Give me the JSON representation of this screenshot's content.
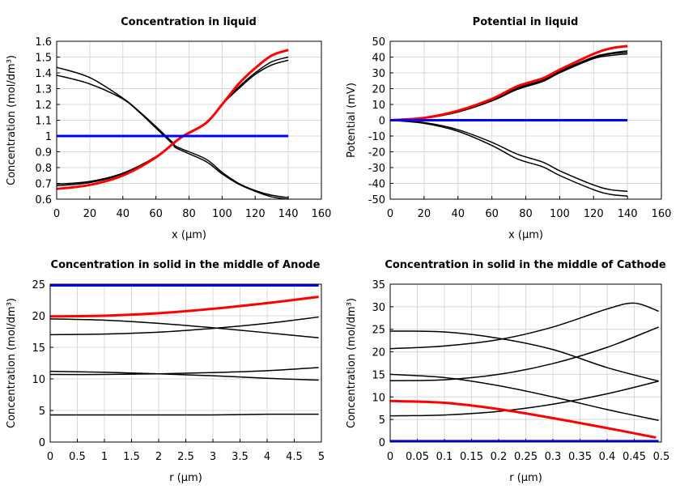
{
  "chart_data": [
    {
      "type": "line",
      "title": "Concentration in liquid",
      "xlabel": "x (µm)",
      "ylabel": "Concentration (mol/dm³)",
      "xlim": [
        0,
        160
      ],
      "ylim": [
        0.6,
        1.6
      ],
      "xticks": [
        "0",
        "20",
        "40",
        "60",
        "80",
        "100",
        "120",
        "140",
        "160"
      ],
      "yticks": [
        "0.6",
        "0.7",
        "0.8",
        "0.9",
        "1",
        "1.1",
        "1.2",
        "1.3",
        "1.4",
        "1.5",
        "1.6"
      ],
      "grid": true,
      "series": [
        {
          "color": "#000000",
          "points": [
            [
              0,
              1.435
            ],
            [
              20,
              1.37
            ],
            [
              40,
              1.24
            ],
            [
              50,
              1.155
            ],
            [
              60,
              1.06
            ],
            [
              70,
              0.96
            ],
            [
              73,
              0.93
            ],
            [
              90,
              0.855
            ],
            [
              100,
              0.77
            ],
            [
              110,
              0.7
            ],
            [
              120,
              0.655
            ],
            [
              130,
              0.625
            ],
            [
              140,
              0.61
            ]
          ]
        },
        {
          "color": "#000000",
          "points": [
            [
              0,
              1.385
            ],
            [
              20,
              1.33
            ],
            [
              40,
              1.235
            ],
            [
              50,
              1.15
            ],
            [
              60,
              1.05
            ],
            [
              70,
              0.95
            ],
            [
              73,
              0.92
            ],
            [
              90,
              0.84
            ],
            [
              100,
              0.76
            ],
            [
              110,
              0.695
            ],
            [
              120,
              0.65
            ],
            [
              130,
              0.615
            ],
            [
              140,
              0.6
            ]
          ]
        },
        {
          "color": "#000000",
          "points": [
            [
              0,
              0.695
            ],
            [
              20,
              0.712
            ],
            [
              40,
              0.765
            ],
            [
              60,
              0.87
            ],
            [
              75,
              0.99
            ],
            [
              90,
              1.08
            ],
            [
              100,
              1.2
            ],
            [
              110,
              1.31
            ],
            [
              120,
              1.4
            ],
            [
              130,
              1.47
            ],
            [
              140,
              1.5
            ]
          ]
        },
        {
          "color": "#000000",
          "points": [
            [
              0,
              0.685
            ],
            [
              20,
              0.705
            ],
            [
              40,
              0.76
            ],
            [
              60,
              0.868
            ],
            [
              75,
              0.99
            ],
            [
              90,
              1.08
            ],
            [
              100,
              1.2
            ],
            [
              110,
              1.3
            ],
            [
              120,
              1.39
            ],
            [
              130,
              1.45
            ],
            [
              140,
              1.48
            ]
          ]
        },
        {
          "color": "#ff0000",
          "points": [
            [
              0,
              0.665
            ],
            [
              20,
              0.69
            ],
            [
              40,
              0.75
            ],
            [
              60,
              0.865
            ],
            [
              75,
              0.99
            ],
            [
              90,
              1.08
            ],
            [
              100,
              1.2
            ],
            [
              110,
              1.33
            ],
            [
              120,
              1.43
            ],
            [
              130,
              1.51
            ],
            [
              140,
              1.545
            ]
          ]
        },
        {
          "color": "#0000ff",
          "points": [
            [
              0,
              1
            ],
            [
              140,
              1
            ]
          ]
        }
      ]
    },
    {
      "type": "line",
      "title": "Potential in liquid",
      "xlabel": "x (µm)",
      "ylabel": "Potential (mV)",
      "xlim": [
        0,
        160
      ],
      "ylim": [
        -50,
        50
      ],
      "xticks": [
        "0",
        "20",
        "40",
        "60",
        "80",
        "100",
        "120",
        "140",
        "160"
      ],
      "yticks": [
        "-50",
        "-40",
        "-30",
        "-20",
        "-10",
        "0",
        "10",
        "20",
        "30",
        "40",
        "50"
      ],
      "grid": true,
      "series": [
        {
          "color": "#000000",
          "points": [
            [
              0,
              0
            ],
            [
              20,
              1.4
            ],
            [
              40,
              5.6
            ],
            [
              60,
              13
            ],
            [
              75,
              20.5
            ],
            [
              90,
              25.5
            ],
            [
              100,
              31
            ],
            [
              120,
              40
            ],
            [
              130,
              42.5
            ],
            [
              140,
              44
            ]
          ]
        },
        {
          "color": "#000000",
          "points": [
            [
              0,
              0
            ],
            [
              20,
              1.3
            ],
            [
              40,
              5.4
            ],
            [
              60,
              12.6
            ],
            [
              75,
              20
            ],
            [
              90,
              25
            ],
            [
              100,
              30.5
            ],
            [
              120,
              39.5
            ],
            [
              130,
              42
            ],
            [
              140,
              43
            ]
          ]
        },
        {
          "color": "#000000",
          "points": [
            [
              0,
              0
            ],
            [
              20,
              1.2
            ],
            [
              40,
              5.2
            ],
            [
              60,
              12.2
            ],
            [
              75,
              19.5
            ],
            [
              90,
              24.5
            ],
            [
              100,
              30
            ],
            [
              120,
              39
            ],
            [
              130,
              41
            ],
            [
              140,
              42
            ]
          ]
        },
        {
          "color": "#000000",
          "points": [
            [
              0,
              0
            ],
            [
              20,
              -1.5
            ],
            [
              40,
              -6
            ],
            [
              60,
              -14
            ],
            [
              75,
              -21.5
            ],
            [
              90,
              -26.5
            ],
            [
              100,
              -32
            ],
            [
              120,
              -41
            ],
            [
              130,
              -44
            ],
            [
              140,
              -45
            ]
          ]
        },
        {
          "color": "#000000",
          "points": [
            [
              0,
              0
            ],
            [
              20,
              -2
            ],
            [
              40,
              -7
            ],
            [
              60,
              -16
            ],
            [
              75,
              -24.5
            ],
            [
              90,
              -29.5
            ],
            [
              100,
              -35
            ],
            [
              120,
              -44
            ],
            [
              130,
              -47
            ],
            [
              140,
              -48
            ]
          ]
        },
        {
          "color": "#ff0000",
          "points": [
            [
              0,
              0
            ],
            [
              20,
              1.5
            ],
            [
              40,
              6
            ],
            [
              60,
              13.5
            ],
            [
              75,
              21.5
            ],
            [
              90,
              26.5
            ],
            [
              100,
              32
            ],
            [
              120,
              42
            ],
            [
              130,
              45.5
            ],
            [
              140,
              47
            ]
          ]
        },
        {
          "color": "#0000ff",
          "points": [
            [
              0,
              0
            ],
            [
              140,
              0
            ]
          ]
        }
      ]
    },
    {
      "type": "line",
      "title": "Concentration in solid in the middle of Anode",
      "xlabel": "r (µm)",
      "ylabel": "Concentration (mol/dm³)",
      "xlim": [
        0,
        5
      ],
      "ylim": [
        0,
        25
      ],
      "xticks": [
        "0",
        "0.5",
        "1",
        "1.5",
        "2",
        "2.5",
        "3",
        "3.5",
        "4",
        "4.5",
        "5"
      ],
      "yticks": [
        "0",
        "5",
        "10",
        "15",
        "20",
        "25"
      ],
      "grid": true,
      "series": [
        {
          "color": "#000000",
          "points": [
            [
              0,
              19.5
            ],
            [
              1,
              19.3
            ],
            [
              2,
              18.8
            ],
            [
              3,
              18.1
            ],
            [
              4,
              17.3
            ],
            [
              4.95,
              16.5
            ]
          ]
        },
        {
          "color": "#000000",
          "points": [
            [
              0,
              17
            ],
            [
              1,
              17.1
            ],
            [
              2,
              17.4
            ],
            [
              3,
              18
            ],
            [
              4,
              18.8
            ],
            [
              4.95,
              19.8
            ]
          ]
        },
        {
          "color": "#000000",
          "points": [
            [
              0,
              11.2
            ],
            [
              1,
              11.05
            ],
            [
              2,
              10.8
            ],
            [
              3,
              10.5
            ],
            [
              4,
              10.1
            ],
            [
              4.95,
              9.8
            ]
          ]
        },
        {
          "color": "#000000",
          "points": [
            [
              0,
              10.7
            ],
            [
              1,
              10.7
            ],
            [
              2,
              10.8
            ],
            [
              3,
              11
            ],
            [
              4,
              11.3
            ],
            [
              4.95,
              11.8
            ]
          ]
        },
        {
          "color": "#000000",
          "points": [
            [
              0,
              4.3
            ],
            [
              1,
              4.3
            ],
            [
              2,
              4.3
            ],
            [
              3,
              4.3
            ],
            [
              4,
              4.4
            ],
            [
              4.95,
              4.4
            ]
          ]
        },
        {
          "color": "#ff0000",
          "points": [
            [
              0,
              19.9
            ],
            [
              1,
              20
            ],
            [
              2,
              20.4
            ],
            [
              3,
              21.1
            ],
            [
              4,
              22
            ],
            [
              4.95,
              23
            ]
          ]
        },
        {
          "color": "#0000ff",
          "points": [
            [
              0,
              24.8
            ],
            [
              4.95,
              24.8
            ]
          ]
        }
      ]
    },
    {
      "type": "line",
      "title": "Concentration in solid in the middle of Cathode",
      "xlabel": "r (µm)",
      "ylabel": "Concentration (mol/dm³)",
      "xlim": [
        0,
        0.5
      ],
      "ylim": [
        0,
        35
      ],
      "xticks": [
        "0",
        "0.05",
        "0.1",
        "0.15",
        "0.2",
        "0.25",
        "0.3",
        "0.35",
        "0.4",
        "0.45",
        "0.5"
      ],
      "yticks": [
        "0",
        "5",
        "10",
        "15",
        "20",
        "25",
        "30",
        "35"
      ],
      "grid": true,
      "series": [
        {
          "color": "#000000",
          "points": [
            [
              0,
              24.6
            ],
            [
              0.1,
              24.4
            ],
            [
              0.2,
              23
            ],
            [
              0.3,
              20.5
            ],
            [
              0.4,
              16.5
            ],
            [
              0.495,
              13.5
            ]
          ]
        },
        {
          "color": "#000000",
          "points": [
            [
              0,
              20.7
            ],
            [
              0.1,
              21.3
            ],
            [
              0.2,
              22.7
            ],
            [
              0.3,
              25.5
            ],
            [
              0.4,
              29.5
            ],
            [
              0.45,
              30.8
            ],
            [
              0.495,
              29
            ]
          ]
        },
        {
          "color": "#000000",
          "points": [
            [
              0,
              13.6
            ],
            [
              0.1,
              13.8
            ],
            [
              0.2,
              15
            ],
            [
              0.3,
              17.4
            ],
            [
              0.4,
              21
            ],
            [
              0.495,
              25.5
            ]
          ]
        },
        {
          "color": "#000000",
          "points": [
            [
              0,
              15
            ],
            [
              0.1,
              14.3
            ],
            [
              0.2,
              12.5
            ],
            [
              0.3,
              10
            ],
            [
              0.4,
              7.2
            ],
            [
              0.495,
              4.8
            ]
          ]
        },
        {
          "color": "#000000",
          "points": [
            [
              0,
              5.8
            ],
            [
              0.1,
              6
            ],
            [
              0.2,
              6.8
            ],
            [
              0.3,
              8.4
            ],
            [
              0.4,
              10.7
            ],
            [
              0.495,
              13.5
            ]
          ]
        },
        {
          "color": "#ff0000",
          "points": [
            [
              0,
              9.1
            ],
            [
              0.1,
              8.7
            ],
            [
              0.2,
              7.3
            ],
            [
              0.3,
              5.3
            ],
            [
              0.4,
              3.1
            ],
            [
              0.49,
              1.0
            ]
          ]
        },
        {
          "color": "#0000ff",
          "points": [
            [
              0,
              0.2
            ],
            [
              0.495,
              0.2
            ]
          ]
        }
      ]
    }
  ]
}
